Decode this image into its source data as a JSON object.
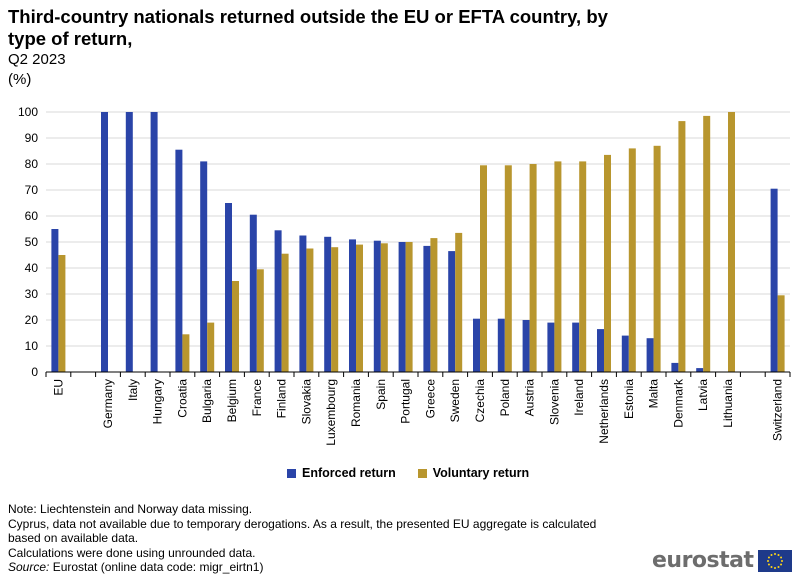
{
  "title": "Third-country nationals returned outside the EU or EFTA country, by type of return,",
  "subtitle": "Q2 2023",
  "unit": "(%)",
  "legend": {
    "enforced": "Enforced return",
    "voluntary": "Voluntary return"
  },
  "notes": [
    "Note: Liechtenstein  and Norway data missing.",
    "Cyprus, data not available due to temporary derogations. As a result, the presented EU aggregate is calculated",
    "based on available data.",
    "Calculations  were done using unrounded data."
  ],
  "source_label": "Source:",
  "source_text": " Eurostat (online data code: migr_eirtn1)",
  "logo_text": "eurostat",
  "colors": {
    "enforced": "#2a44a8",
    "voluntary": "#b8962e",
    "grid": "#d9d9d9"
  },
  "chart_data": {
    "type": "bar",
    "ylim": [
      0,
      100
    ],
    "yticks": [
      0,
      10,
      20,
      30,
      40,
      50,
      60,
      70,
      80,
      90,
      100
    ],
    "grid": true,
    "legend_position": "bottom",
    "categories": [
      "EU",
      "",
      "Germany",
      "Italy",
      "Hungary",
      "Croatia",
      "Bulgaria",
      "Belgium",
      "France",
      "Finland",
      "Slovakia",
      "Luxembourg",
      "Romania",
      "Spain",
      "Portugal",
      "Greece",
      "Sweden",
      "Czechia",
      "Poland",
      "Austria",
      "Slovenia",
      "Ireland",
      "Netherlands",
      "Estonia",
      "Malta",
      "Denmark",
      "Latvia",
      "Lithuania",
      "",
      "Switzerland"
    ],
    "series": [
      {
        "name": "Enforced return",
        "values": [
          55,
          null,
          100,
          100,
          100,
          85.5,
          81,
          65,
          60.5,
          54.5,
          52.5,
          52,
          51,
          50.5,
          50,
          48.5,
          46.5,
          20.5,
          20.5,
          20,
          19,
          19,
          16.5,
          14,
          13,
          3.5,
          1.5,
          0,
          null,
          70.5
        ]
      },
      {
        "name": "Voluntary return",
        "values": [
          45,
          null,
          0,
          0,
          0,
          14.5,
          19,
          35,
          39.5,
          45.5,
          47.5,
          48,
          49,
          49.5,
          50,
          51.5,
          53.5,
          79.5,
          79.5,
          80,
          81,
          81,
          83.5,
          86,
          87,
          96.5,
          98.5,
          100,
          null,
          29.5
        ]
      }
    ]
  }
}
